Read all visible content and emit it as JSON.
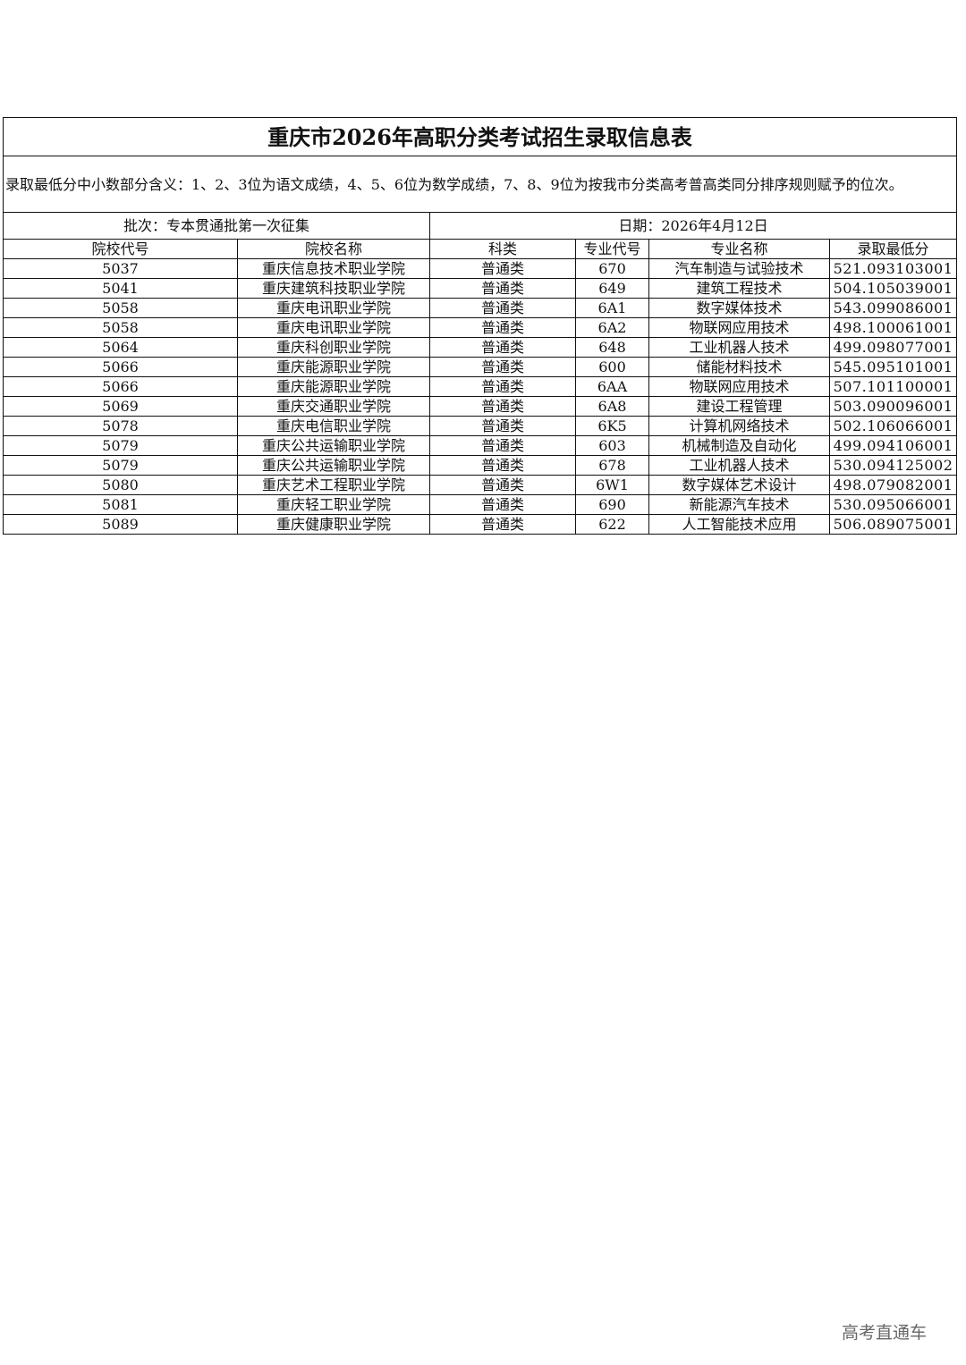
{
  "title": "重庆市2026年高职分类考试招生录取信息表",
  "note": "录取最低分中小数部分含义：1、2、3位为语文成绩，4、5、6位为数学成绩，7、8、9位为按我市分类高考普高类同分排序规则赋予的位次。",
  "batch": "批次：专本贯通批第一次征集",
  "date": "日期：2026年4月12日",
  "columns": [
    "院校代号",
    "院校名称",
    "科类",
    "专业代号",
    "专业名称",
    "录取最低分"
  ],
  "rows": [
    [
      "5037",
      "重庆信息技术职业学院",
      "普通类",
      "670",
      "汽车制造与试验技术",
      "521.093103001"
    ],
    [
      "5041",
      "重庆建筑科技职业学院",
      "普通类",
      "649",
      "建筑工程技术",
      "504.105039001"
    ],
    [
      "5058",
      "重庆电讯职业学院",
      "普通类",
      "6A1",
      "数字媒体技术",
      "543.099086001"
    ],
    [
      "5058",
      "重庆电讯职业学院",
      "普通类",
      "6A2",
      "物联网应用技术",
      "498.100061001"
    ],
    [
      "5064",
      "重庆科创职业学院",
      "普通类",
      "648",
      "工业机器人技术",
      "499.098077001"
    ],
    [
      "5066",
      "重庆能源职业学院",
      "普通类",
      "600",
      "储能材料技术",
      "545.095101001"
    ],
    [
      "5066",
      "重庆能源职业学院",
      "普通类",
      "6AA",
      "物联网应用技术",
      "507.101100001"
    ],
    [
      "5069",
      "重庆交通职业学院",
      "普通类",
      "6A8",
      "建设工程管理",
      "503.090096001"
    ],
    [
      "5078",
      "重庆电信职业学院",
      "普通类",
      "6K5",
      "计算机网络技术",
      "502.106066001"
    ],
    [
      "5079",
      "重庆公共运输职业学院",
      "普通类",
      "603",
      "机械制造及自动化",
      "499.094106001"
    ],
    [
      "5079",
      "重庆公共运输职业学院",
      "普通类",
      "678",
      "工业机器人技术",
      "530.094125002"
    ],
    [
      "5080",
      "重庆艺术工程职业学院",
      "普通类",
      "6W1",
      "数字媒体艺术设计",
      "498.079082001"
    ],
    [
      "5081",
      "重庆轻工职业学院",
      "普通类",
      "690",
      "新能源汽车技术",
      "530.095066001"
    ],
    [
      "5089",
      "重庆健康职业学院",
      "普通类",
      "622",
      "人工智能技术应用",
      "506.089075001"
    ]
  ],
  "watermark": "高考直通车"
}
